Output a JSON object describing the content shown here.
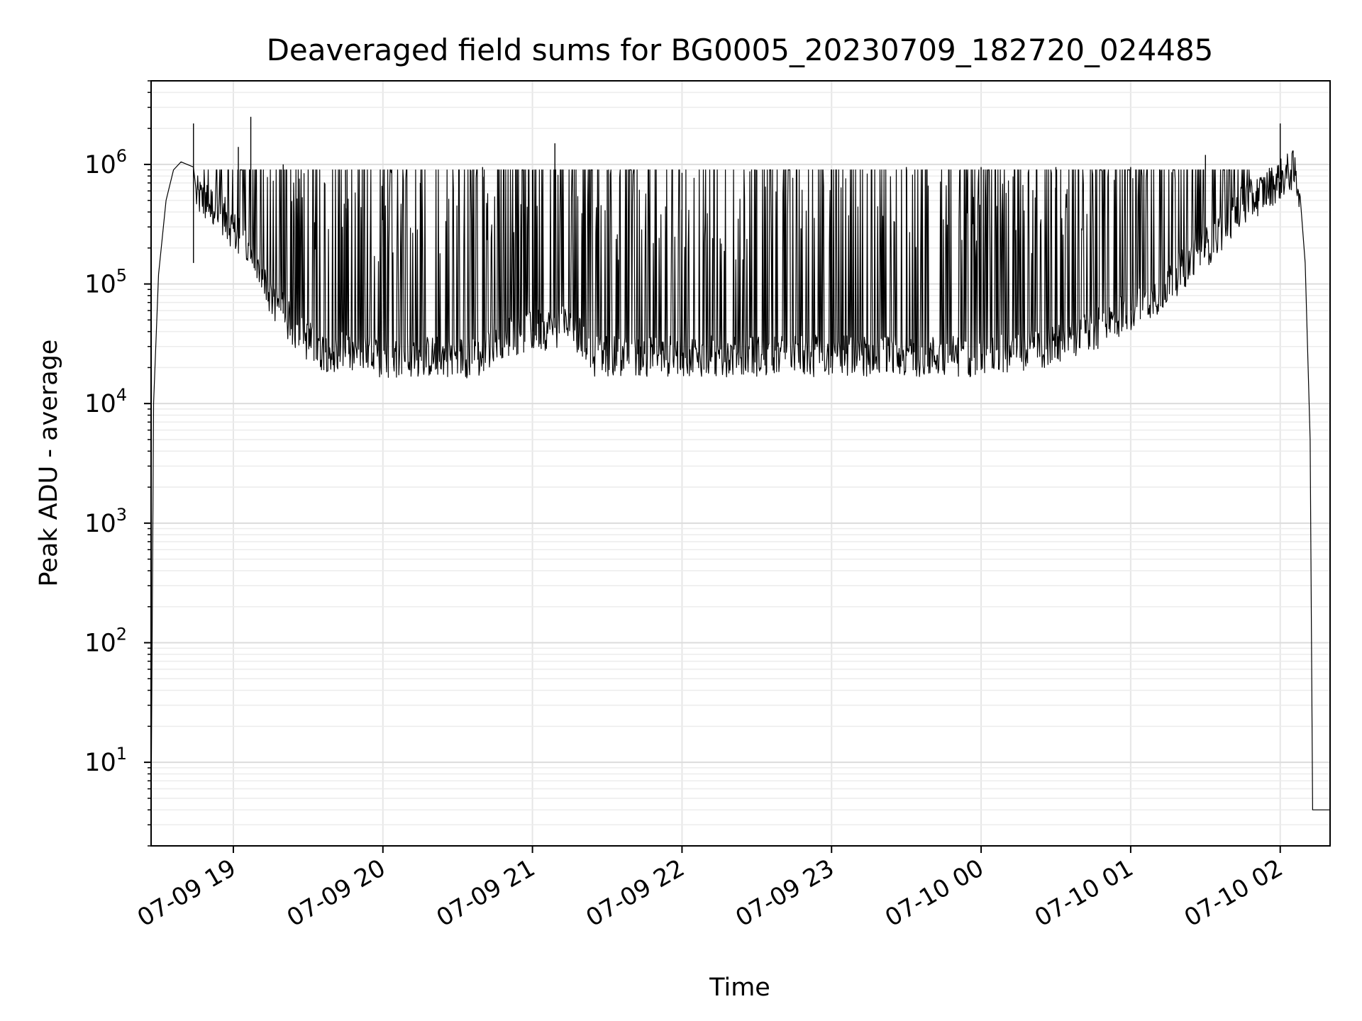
{
  "chart_data": {
    "type": "line",
    "title": "Deaveraged field sums for BG0005_20230709_182720_024485",
    "xlabel": "Time",
    "ylabel": "Peak ADU - average",
    "y_scale": "log",
    "ylim": [
      2,
      5000000
    ],
    "xlim": [
      "2023-07-09 18:27",
      "2023-07-10 02:20"
    ],
    "x_ticks": [
      {
        "t": "2023-07-09 19:00",
        "label": "07-09 19"
      },
      {
        "t": "2023-07-09 20:00",
        "label": "07-09 20"
      },
      {
        "t": "2023-07-09 21:00",
        "label": "07-09 21"
      },
      {
        "t": "2023-07-09 22:00",
        "label": "07-09 22"
      },
      {
        "t": "2023-07-09 23:00",
        "label": "07-09 23"
      },
      {
        "t": "2023-07-10 00:00",
        "label": "07-10 00"
      },
      {
        "t": "2023-07-10 01:00",
        "label": "07-10 01"
      },
      {
        "t": "2023-07-10 02:00",
        "label": "07-10 02"
      }
    ],
    "y_ticks": [
      {
        "value": 10,
        "mantissa": "10",
        "exponent": "1"
      },
      {
        "value": 100,
        "mantissa": "10",
        "exponent": "2"
      },
      {
        "value": 1000,
        "mantissa": "10",
        "exponent": "3"
      },
      {
        "value": 10000,
        "mantissa": "10",
        "exponent": "4"
      },
      {
        "value": 100000,
        "mantissa": "10",
        "exponent": "5"
      },
      {
        "value": 1000000,
        "mantissa": "10",
        "exponent": "6"
      }
    ],
    "grid": true,
    "minor_grid": true,
    "line_color": "#000000",
    "series": [
      {
        "baseline": [
          {
            "t": "2023-07-09 18:27",
            "y": 4
          },
          {
            "t": "2023-07-09 18:28",
            "y": 10000
          },
          {
            "t": "2023-07-09 18:30",
            "y": 120000
          },
          {
            "t": "2023-07-09 18:33",
            "y": 500000
          },
          {
            "t": "2023-07-09 18:36",
            "y": 900000
          },
          {
            "t": "2023-07-09 18:39",
            "y": 1050000
          },
          {
            "t": "2023-07-09 18:44",
            "y": 950000
          },
          {
            "t": "2023-07-09 18:45",
            "y": 550000
          },
          {
            "t": "2023-07-09 18:55",
            "y": 400000
          },
          {
            "t": "2023-07-09 19:05",
            "y": 200000
          },
          {
            "t": "2023-07-09 19:15",
            "y": 80000
          },
          {
            "t": "2023-07-09 19:25",
            "y": 40000
          },
          {
            "t": "2023-07-09 19:35",
            "y": 28000
          },
          {
            "t": "2023-07-09 20:00",
            "y": 24000
          },
          {
            "t": "2023-07-09 20:25",
            "y": 25000
          },
          {
            "t": "2023-07-09 20:40",
            "y": 24000
          },
          {
            "t": "2023-07-09 20:45",
            "y": 35000
          },
          {
            "t": "2023-07-09 21:00",
            "y": 40000
          },
          {
            "t": "2023-07-09 21:15",
            "y": 45000
          },
          {
            "t": "2023-07-09 21:25",
            "y": 25000
          },
          {
            "t": "2023-07-09 22:00",
            "y": 25000
          },
          {
            "t": "2023-07-10 00:00",
            "y": 25000
          },
          {
            "t": "2023-07-10 00:30",
            "y": 30000
          },
          {
            "t": "2023-07-10 00:50",
            "y": 45000
          },
          {
            "t": "2023-07-10 01:10",
            "y": 80000
          },
          {
            "t": "2023-07-10 01:30",
            "y": 200000
          },
          {
            "t": "2023-07-10 01:45",
            "y": 450000
          },
          {
            "t": "2023-07-10 02:00",
            "y": 750000
          },
          {
            "t": "2023-07-10 02:05",
            "y": 900000
          },
          {
            "t": "2023-07-10 02:08",
            "y": 600000
          },
          {
            "t": "2023-07-10 02:10",
            "y": 150000
          },
          {
            "t": "2023-07-10 02:12",
            "y": 5000
          },
          {
            "t": "2023-07-10 02:13",
            "y": 4
          },
          {
            "t": "2023-07-10 02:20",
            "y": 4
          }
        ],
        "spikes": [
          {
            "t": "2023-07-09 18:44",
            "y": 2200000
          },
          {
            "t": "2023-07-09 18:44",
            "y": 150000
          },
          {
            "t": "2023-07-09 19:02",
            "y": 1400000
          },
          {
            "t": "2023-07-09 19:07",
            "y": 2500000
          },
          {
            "t": "2023-07-09 19:20",
            "y": 1000000
          },
          {
            "t": "2023-07-09 19:45",
            "y": 900000
          },
          {
            "t": "2023-07-09 20:15",
            "y": 700000
          },
          {
            "t": "2023-07-09 20:40",
            "y": 950000
          },
          {
            "t": "2023-07-09 21:00",
            "y": 900000
          },
          {
            "t": "2023-07-09 21:09",
            "y": 1500000
          },
          {
            "t": "2023-07-09 21:30",
            "y": 900000
          },
          {
            "t": "2023-07-09 22:00",
            "y": 850000
          },
          {
            "t": "2023-07-09 22:30",
            "y": 900000
          },
          {
            "t": "2023-07-09 23:00",
            "y": 900000
          },
          {
            "t": "2023-07-09 23:30",
            "y": 950000
          },
          {
            "t": "2023-07-10 00:00",
            "y": 950000
          },
          {
            "t": "2023-07-10 00:30",
            "y": 950000
          },
          {
            "t": "2023-07-10 01:00",
            "y": 950000
          },
          {
            "t": "2023-07-10 01:30",
            "y": 1200000
          },
          {
            "t": "2023-07-10 02:00",
            "y": 2200000
          }
        ]
      }
    ]
  }
}
